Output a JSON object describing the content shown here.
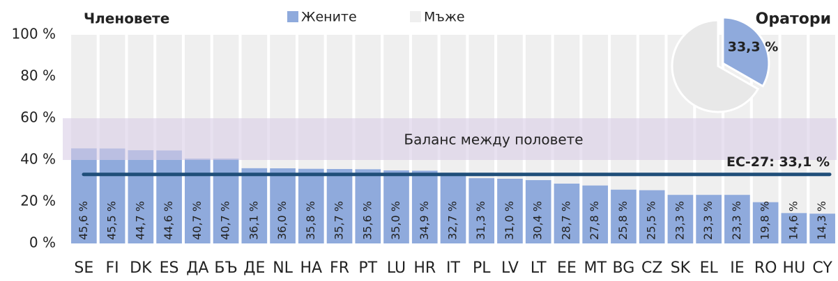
{
  "chart_data": {
    "type": "stacked_bar",
    "title": "Членовете",
    "categories": [
      "SE",
      "FI",
      "DK",
      "ES",
      "ДА",
      "БЪ",
      "ДЕ",
      "NL",
      "HA",
      "FR",
      "PT",
      "LU",
      "HR",
      "IT",
      "PL",
      "LV",
      "LT",
      "EE",
      "MT",
      "BG",
      "CZ",
      "SK",
      "EL",
      "IE",
      "RO",
      "HU",
      "CY"
    ],
    "series": [
      {
        "name": "Жените",
        "color": "#8faadc",
        "values": [
          45.6,
          45.5,
          44.7,
          44.6,
          40.7,
          40.7,
          36.1,
          36.0,
          35.8,
          35.7,
          35.6,
          35.0,
          34.9,
          32.7,
          31.3,
          31.0,
          30.4,
          28.7,
          27.8,
          25.8,
          25.5,
          23.3,
          23.3,
          23.3,
          19.8,
          14.6,
          14.3
        ],
        "value_labels": [
          "45,6 %",
          "45,5 %",
          "44,7 %",
          "44,6 %",
          "40,7 %",
          "40,7 %",
          "36,1 %",
          "36,0 %",
          "35,8 %",
          "35,7 %",
          "35,6 %",
          "35,0 %",
          "34,9 %",
          "32,7 %",
          "31,3 %",
          "31,0 %",
          "30,4 %",
          "28,7 %",
          "27,8 %",
          "25,8 %",
          "25,5 %",
          "23,3 %",
          "23,3 %",
          "23,3 %",
          "19,8 %",
          "14,6 %",
          "14,3 %"
        ]
      },
      {
        "name": "Мъже",
        "color": "#efefef",
        "values": [
          54.4,
          54.5,
          55.3,
          55.4,
          59.3,
          59.3,
          63.9,
          64.0,
          64.2,
          64.3,
          64.4,
          65.0,
          65.1,
          67.3,
          68.7,
          69.0,
          69.6,
          71.3,
          72.2,
          74.2,
          74.5,
          76.7,
          76.7,
          76.7,
          80.2,
          85.4,
          85.7
        ]
      }
    ],
    "ylim": [
      0,
      100
    ],
    "yticks": [
      {
        "value": 0,
        "label": "0 %"
      },
      {
        "value": 20,
        "label": "20 %"
      },
      {
        "value": 40,
        "label": "40 %"
      },
      {
        "value": 60,
        "label": "60 %"
      },
      {
        "value": 80,
        "label": "80 %"
      },
      {
        "value": 100,
        "label": "100 %"
      }
    ],
    "balance_band": {
      "label": "Баланс между половете",
      "range": [
        40,
        60
      ],
      "color": "#d9cde6"
    },
    "average": {
      "label": "ЕС-27: 33,1 %",
      "value": 33.1,
      "color": "#1f4e79"
    },
    "pie": {
      "title": "Оратори",
      "values": [
        33.3,
        66.7
      ],
      "value_labels": [
        "33,3 %"
      ],
      "colors": [
        "#8faadc",
        "#e8e8e8"
      ]
    }
  }
}
